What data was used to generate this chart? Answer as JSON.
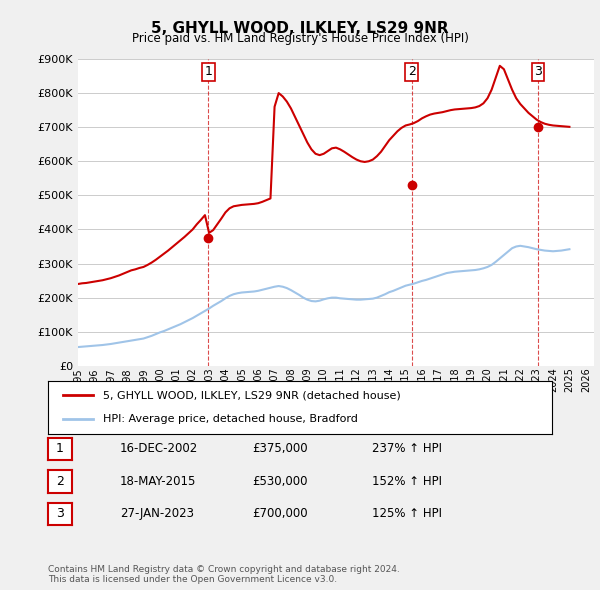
{
  "title": "5, GHYLL WOOD, ILKLEY, LS29 9NR",
  "subtitle": "Price paid vs. HM Land Registry's House Price Index (HPI)",
  "ylabel_values": [
    "£0",
    "£100K",
    "£200K",
    "£300K",
    "£400K",
    "£500K",
    "£600K",
    "£700K",
    "£800K",
    "£900K"
  ],
  "ylim": [
    0,
    900000
  ],
  "xlim_start": 1995.0,
  "xlim_end": 2026.5,
  "hpi_color": "#a0c4e8",
  "price_color": "#cc0000",
  "background_color": "#f0f0f0",
  "plot_bg_color": "#ffffff",
  "sale_points": [
    {
      "year": 2002.96,
      "price": 375000,
      "label": "1"
    },
    {
      "year": 2015.38,
      "price": 530000,
      "label": "2"
    },
    {
      "year": 2023.08,
      "price": 700000,
      "label": "3"
    }
  ],
  "sale_vlines": [
    2002.96,
    2015.38,
    2023.08
  ],
  "legend_label_price": "5, GHYLL WOOD, ILKLEY, LS29 9NR (detached house)",
  "legend_label_hpi": "HPI: Average price, detached house, Bradford",
  "table_data": [
    {
      "num": "1",
      "date": "16-DEC-2002",
      "price": "£375,000",
      "change": "237% ↑ HPI"
    },
    {
      "num": "2",
      "date": "18-MAY-2015",
      "price": "£530,000",
      "change": "152% ↑ HPI"
    },
    {
      "num": "3",
      "date": "27-JAN-2023",
      "price": "£700,000",
      "change": "125% ↑ HPI"
    }
  ],
  "footnote": "Contains HM Land Registry data © Crown copyright and database right 2024.\nThis data is licensed under the Open Government Licence v3.0.",
  "hpi_data_x": [
    1995,
    1995.25,
    1995.5,
    1995.75,
    1996,
    1996.25,
    1996.5,
    1996.75,
    1997,
    1997.25,
    1997.5,
    1997.75,
    1998,
    1998.25,
    1998.5,
    1998.75,
    1999,
    1999.25,
    1999.5,
    1999.75,
    2000,
    2000.25,
    2000.5,
    2000.75,
    2001,
    2001.25,
    2001.5,
    2001.75,
    2002,
    2002.25,
    2002.5,
    2002.75,
    2003,
    2003.25,
    2003.5,
    2003.75,
    2004,
    2004.25,
    2004.5,
    2004.75,
    2005,
    2005.25,
    2005.5,
    2005.75,
    2006,
    2006.25,
    2006.5,
    2006.75,
    2007,
    2007.25,
    2007.5,
    2007.75,
    2008,
    2008.25,
    2008.5,
    2008.75,
    2009,
    2009.25,
    2009.5,
    2009.75,
    2010,
    2010.25,
    2010.5,
    2010.75,
    2011,
    2011.25,
    2011.5,
    2011.75,
    2012,
    2012.25,
    2012.5,
    2012.75,
    2013,
    2013.25,
    2013.5,
    2013.75,
    2014,
    2014.25,
    2014.5,
    2014.75,
    2015,
    2015.25,
    2015.5,
    2015.75,
    2016,
    2016.25,
    2016.5,
    2016.75,
    2017,
    2017.25,
    2017.5,
    2017.75,
    2018,
    2018.25,
    2018.5,
    2018.75,
    2019,
    2019.25,
    2019.5,
    2019.75,
    2020,
    2020.25,
    2020.5,
    2020.75,
    2021,
    2021.25,
    2021.5,
    2021.75,
    2022,
    2022.25,
    2022.5,
    2022.75,
    2023,
    2023.25,
    2023.5,
    2023.75,
    2024,
    2024.25,
    2024.5,
    2024.75,
    2025
  ],
  "hpi_data_y": [
    55000,
    56000,
    57000,
    58000,
    59000,
    60000,
    61000,
    62500,
    64000,
    66000,
    68000,
    70000,
    72000,
    74000,
    76000,
    78000,
    80000,
    84000,
    88000,
    93000,
    98000,
    102000,
    107000,
    112000,
    117000,
    122000,
    128000,
    134000,
    140000,
    147000,
    154000,
    161000,
    168000,
    176000,
    183000,
    190000,
    198000,
    205000,
    210000,
    213000,
    215000,
    216000,
    217000,
    218000,
    220000,
    223000,
    226000,
    229000,
    232000,
    234000,
    232000,
    228000,
    222000,
    215000,
    208000,
    200000,
    194000,
    190000,
    189000,
    191000,
    195000,
    198000,
    200000,
    200000,
    198000,
    197000,
    196000,
    195000,
    194000,
    194000,
    195000,
    196000,
    197000,
    200000,
    205000,
    210000,
    216000,
    220000,
    225000,
    230000,
    235000,
    238000,
    241000,
    245000,
    249000,
    252000,
    256000,
    260000,
    264000,
    268000,
    272000,
    274000,
    276000,
    277000,
    278000,
    279000,
    280000,
    281000,
    283000,
    286000,
    290000,
    296000,
    305000,
    315000,
    325000,
    335000,
    345000,
    350000,
    352000,
    350000,
    348000,
    345000,
    342000,
    340000,
    338000,
    337000,
    336000,
    337000,
    338000,
    340000,
    342000
  ],
  "price_data_x": [
    1995,
    1995.25,
    1995.5,
    1995.75,
    1996,
    1996.25,
    1996.5,
    1996.75,
    1997,
    1997.25,
    1997.5,
    1997.75,
    1998,
    1998.25,
    1998.5,
    1998.75,
    1999,
    1999.25,
    1999.5,
    1999.75,
    2000,
    2000.25,
    2000.5,
    2000.75,
    2001,
    2001.25,
    2001.5,
    2001.75,
    2002,
    2002.25,
    2002.5,
    2002.75,
    2003,
    2003.25,
    2003.5,
    2003.75,
    2004,
    2004.25,
    2004.5,
    2004.75,
    2005,
    2005.25,
    2005.5,
    2005.75,
    2006,
    2006.25,
    2006.5,
    2006.75,
    2007,
    2007.25,
    2007.5,
    2007.75,
    2008,
    2008.25,
    2008.5,
    2008.75,
    2009,
    2009.25,
    2009.5,
    2009.75,
    2010,
    2010.25,
    2010.5,
    2010.75,
    2011,
    2011.25,
    2011.5,
    2011.75,
    2012,
    2012.25,
    2012.5,
    2012.75,
    2013,
    2013.25,
    2013.5,
    2013.75,
    2014,
    2014.25,
    2014.5,
    2014.75,
    2015,
    2015.25,
    2015.5,
    2015.75,
    2016,
    2016.25,
    2016.5,
    2016.75,
    2017,
    2017.25,
    2017.5,
    2017.75,
    2018,
    2018.25,
    2018.5,
    2018.75,
    2019,
    2019.25,
    2019.5,
    2019.75,
    2020,
    2020.25,
    2020.5,
    2020.75,
    2021,
    2021.25,
    2021.5,
    2021.75,
    2022,
    2022.25,
    2022.5,
    2022.75,
    2023,
    2023.25,
    2023.5,
    2023.75,
    2024,
    2024.25,
    2024.5,
    2024.75,
    2025
  ],
  "price_data_y": [
    240000,
    242000,
    243000,
    245000,
    247000,
    249000,
    251000,
    254000,
    257000,
    261000,
    265000,
    270000,
    275000,
    280000,
    283000,
    287000,
    290000,
    296000,
    303000,
    311000,
    320000,
    329000,
    338000,
    348000,
    358000,
    368000,
    378000,
    389000,
    400000,
    415000,
    428000,
    442000,
    390000,
    398000,
    415000,
    432000,
    450000,
    462000,
    468000,
    470000,
    472000,
    473000,
    474000,
    475000,
    477000,
    481000,
    486000,
    491000,
    760000,
    800000,
    790000,
    775000,
    755000,
    730000,
    705000,
    680000,
    655000,
    635000,
    622000,
    618000,
    622000,
    630000,
    638000,
    640000,
    635000,
    628000,
    620000,
    612000,
    605000,
    600000,
    598000,
    600000,
    605000,
    615000,
    628000,
    645000,
    662000,
    675000,
    688000,
    698000,
    705000,
    708000,
    712000,
    718000,
    726000,
    732000,
    737000,
    740000,
    742000,
    744000,
    747000,
    750000,
    752000,
    753000,
    754000,
    755000,
    756000,
    758000,
    762000,
    770000,
    785000,
    810000,
    845000,
    880000,
    870000,
    840000,
    810000,
    785000,
    768000,
    755000,
    742000,
    732000,
    722000,
    715000,
    710000,
    707000,
    705000,
    704000,
    703000,
    702000,
    701000
  ]
}
